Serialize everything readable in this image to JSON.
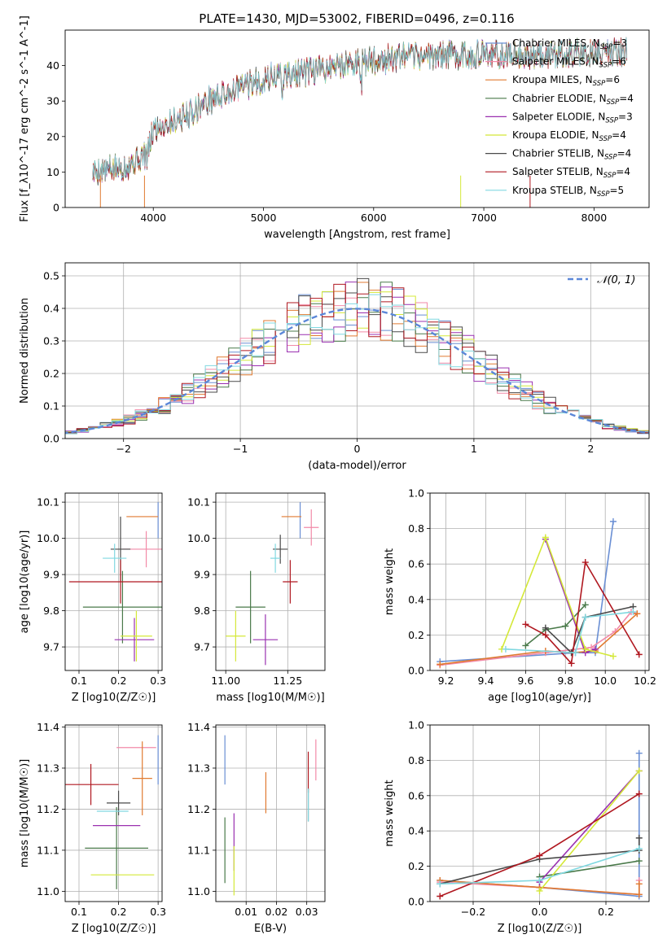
{
  "title": "PLATE=1430, MJD=53002, FIBERID=0496, z=0.116",
  "models": [
    {
      "key": "chab_miles",
      "color": "#6a8fd4",
      "label": "Chabrier MILES, N",
      "n": "=3"
    },
    {
      "key": "salp_miles",
      "color": "#f28aa8",
      "label": "Salpeter MILES, N",
      "n": "=6"
    },
    {
      "key": "krou_miles",
      "color": "#e07a30",
      "label": "Kroupa MILES, N",
      "n": "=6"
    },
    {
      "key": "chab_elodie",
      "color": "#4a7a4a",
      "label": "Chabrier ELODIE, N",
      "n": "=4"
    },
    {
      "key": "salp_elodie",
      "color": "#9a30b0",
      "label": "Salpeter ELODIE, N",
      "n": "=3"
    },
    {
      "key": "krou_elodie",
      "color": "#d4e838",
      "label": "Kroupa ELODIE, N",
      "n": "=4"
    },
    {
      "key": "chab_stelib",
      "color": "#4a4a4a",
      "label": "Chabrier STELIB, N",
      "n": "=4"
    },
    {
      "key": "salp_stelib",
      "color": "#b01820",
      "label": "Salpeter STELIB, N",
      "n": "=4"
    },
    {
      "key": "krou_stelib",
      "color": "#80d8e0",
      "label": "Kroupa STELIB, N",
      "n": "=5"
    }
  ],
  "legend_sub": "SSP",
  "chart_data": [
    {
      "id": "spectrum",
      "type": "line",
      "xlabel": "wavelength [Angstrom, rest frame]",
      "ylabel": "Flux [f_λ10^-17 erg cm^-2 s^-1 A^-1]",
      "xlim": [
        3200,
        8500
      ],
      "ylim": [
        0,
        50
      ],
      "xticks": [
        "4000",
        "5000",
        "6000",
        "7000",
        "8000"
      ],
      "yticks": [
        "0",
        "10",
        "20",
        "30",
        "40"
      ],
      "grid": false,
      "continuum": [
        [
          3450,
          10
        ],
        [
          3700,
          11
        ],
        [
          3950,
          15
        ],
        [
          4000,
          22
        ],
        [
          4300,
          26
        ],
        [
          4500,
          30
        ],
        [
          4800,
          34
        ],
        [
          5100,
          37
        ],
        [
          5400,
          38
        ],
        [
          5800,
          41
        ],
        [
          6200,
          42
        ],
        [
          6600,
          43
        ],
        [
          7000,
          43
        ],
        [
          7400,
          43
        ],
        [
          7800,
          43.5
        ],
        [
          8300,
          44
        ]
      ]
    },
    {
      "id": "residuals",
      "type": "line",
      "xlabel": "(data-model)/error",
      "ylabel": "Normed distribution",
      "xlim": [
        -2.5,
        2.5
      ],
      "ylim": [
        0,
        0.54
      ],
      "xticks": [
        "-2",
        "-1",
        "0",
        "1",
        "2"
      ],
      "yticks": [
        "0.0",
        "0.1",
        "0.2",
        "0.3",
        "0.4",
        "0.5"
      ],
      "grid": true,
      "legend": "𝒩(0, 1)",
      "gaussian": {
        "mu": 0,
        "sigma": 1
      }
    },
    {
      "id": "age_vs_Z",
      "type": "scatter",
      "xlabel": "Z [log10(Z/Z☉)]",
      "ylabel": "age  [log10(age/yr)]",
      "xlim": [
        0.065,
        0.31
      ],
      "ylim": [
        9.635,
        10.125
      ],
      "xticks": [
        "0.1",
        "0.2",
        "0.3"
      ],
      "yticks": [
        "9.7",
        "9.8",
        "9.9",
        "10.0",
        "10.1"
      ],
      "grid": true,
      "points": [
        {
          "x": 0.3,
          "y": 10.05,
          "xe": 0.0,
          "ye": 0.05
        },
        {
          "x": 0.27,
          "y": 9.97,
          "xe": 0.06,
          "ye": 0.05
        },
        {
          "x": 0.26,
          "y": 10.06,
          "xe": 0.04,
          "ye": 0.0
        },
        {
          "x": 0.21,
          "y": 9.81,
          "xe": 0.1,
          "ye": 0.1
        },
        {
          "x": 0.24,
          "y": 9.72,
          "xe": 0.05,
          "ye": 0.06
        },
        {
          "x": 0.245,
          "y": 9.73,
          "xe": 0.04,
          "ye": 0.07
        },
        {
          "x": 0.205,
          "y": 9.97,
          "xe": 0.025,
          "ye": 0.09
        },
        {
          "x": 0.205,
          "y": 9.88,
          "xe": 0.13,
          "ye": 0.06
        },
        {
          "x": 0.19,
          "y": 9.945,
          "xe": 0.03,
          "ye": 0.04
        }
      ]
    },
    {
      "id": "age_vs_mass",
      "type": "scatter",
      "xlabel": "mass [log10(M/M☉)]",
      "ylabel": "",
      "xlim": [
        10.96,
        11.4
      ],
      "ylim": [
        9.635,
        10.125
      ],
      "xticks": [
        "11.00",
        "11.25"
      ],
      "yticks": [
        "9.7",
        "9.8",
        "9.9",
        "10.0",
        "10.1"
      ],
      "grid": true,
      "points": [
        {
          "x": 11.3,
          "y": 10.05,
          "xe": 0.0,
          "ye": 0.05
        },
        {
          "x": 11.345,
          "y": 10.03,
          "xe": 0.03,
          "ye": 0.05
        },
        {
          "x": 11.265,
          "y": 10.06,
          "xe": 0.04,
          "ye": 0.0
        },
        {
          "x": 11.1,
          "y": 9.81,
          "xe": 0.06,
          "ye": 0.1
        },
        {
          "x": 11.16,
          "y": 9.72,
          "xe": 0.05,
          "ye": 0.07
        },
        {
          "x": 11.04,
          "y": 9.73,
          "xe": 0.04,
          "ye": 0.07
        },
        {
          "x": 11.22,
          "y": 9.97,
          "xe": 0.03,
          "ye": 0.04
        },
        {
          "x": 11.26,
          "y": 9.88,
          "xe": 0.03,
          "ye": 0.06
        },
        {
          "x": 11.2,
          "y": 9.945,
          "xe": 0.02,
          "ye": 0.04
        }
      ]
    },
    {
      "id": "weight_vs_age",
      "type": "line",
      "xlabel": "age  [log10(age/yr)]",
      "ylabel": "mass weight",
      "xlim": [
        9.12,
        10.22
      ],
      "ylim": [
        0,
        1
      ],
      "xticks": [
        "9.2",
        "9.4",
        "9.6",
        "9.8",
        "10.0",
        "10.2"
      ],
      "yticks": [
        "0.0",
        "0.2",
        "0.4",
        "0.6",
        "0.8",
        "1.0"
      ],
      "grid": true,
      "series": [
        {
          "points": [
            [
              9.17,
              0.05
            ],
            [
              9.85,
              0.1
            ],
            [
              9.95,
              0.1
            ],
            [
              10.04,
              0.84
            ]
          ]
        },
        {
          "points": [
            [
              9.17,
              0.03
            ],
            [
              9.7,
              0.1
            ],
            [
              9.93,
              0.13
            ],
            [
              10.05,
              0.22
            ],
            [
              10.13,
              0.33
            ],
            [
              10.16,
              0.32
            ]
          ]
        },
        {
          "points": [
            [
              9.17,
              0.035
            ],
            [
              9.7,
              0.11
            ],
            [
              9.83,
              0.1
            ],
            [
              9.95,
              0.11
            ],
            [
              10.16,
              0.32
            ]
          ]
        },
        {
          "points": [
            [
              9.6,
              0.14
            ],
            [
              9.7,
              0.23
            ],
            [
              9.8,
              0.25
            ],
            [
              9.9,
              0.37
            ]
          ]
        },
        {
          "points": [
            [
              9.7,
              0.74
            ],
            [
              9.9,
              0.1
            ],
            [
              9.95,
              0.12
            ]
          ]
        },
        {
          "points": [
            [
              9.48,
              0.12
            ],
            [
              9.7,
              0.75
            ],
            [
              9.9,
              0.12
            ],
            [
              10.04,
              0.08
            ]
          ]
        },
        {
          "points": [
            [
              9.7,
              0.24
            ],
            [
              9.83,
              0.1
            ],
            [
              9.9,
              0.3
            ],
            [
              10.14,
              0.36
            ]
          ]
        },
        {
          "points": [
            [
              9.6,
              0.26
            ],
            [
              9.7,
              0.2
            ],
            [
              9.83,
              0.04
            ],
            [
              9.9,
              0.61
            ],
            [
              10.17,
              0.09
            ]
          ]
        },
        {
          "points": [
            [
              9.5,
              0.12
            ],
            [
              9.85,
              0.1
            ],
            [
              9.9,
              0.3
            ],
            [
              10.14,
              0.33
            ]
          ]
        }
      ]
    },
    {
      "id": "mass_vs_Z",
      "type": "scatter",
      "xlabel": "Z [log10(Z/Z☉)]",
      "ylabel": "mass [log10(M/M☉)]",
      "xlim": [
        0.065,
        0.31
      ],
      "ylim": [
        10.975,
        11.405
      ],
      "xticks": [
        "0.1",
        "0.2",
        "0.3"
      ],
      "yticks": [
        "11.0",
        "11.1",
        "11.2",
        "11.3",
        "11.4"
      ],
      "grid": true,
      "points": [
        {
          "x": 0.3,
          "y": 11.32,
          "xe": 0.0,
          "ye": 0.06
        },
        {
          "x": 0.245,
          "y": 11.35,
          "xe": 0.05,
          "ye": 0.0
        },
        {
          "x": 0.26,
          "y": 11.275,
          "xe": 0.025,
          "ye": 0.09
        },
        {
          "x": 0.195,
          "y": 11.105,
          "xe": 0.08,
          "ye": 0.1
        },
        {
          "x": 0.195,
          "y": 11.16,
          "xe": 0.06,
          "ye": 0.0
        },
        {
          "x": 0.21,
          "y": 11.04,
          "xe": 0.08,
          "ye": 0.0
        },
        {
          "x": 0.2,
          "y": 11.215,
          "xe": 0.03,
          "ye": 0.03
        },
        {
          "x": 0.13,
          "y": 11.26,
          "xe": 0.07,
          "ye": 0.05
        },
        {
          "x": 0.185,
          "y": 11.195,
          "xe": 0.04,
          "ye": 0.0
        }
      ]
    },
    {
      "id": "mass_vs_ebv",
      "type": "scatter",
      "xlabel": "E(B-V)",
      "ylabel": "",
      "xlim": [
        0.0,
        0.036
      ],
      "ylim": [
        10.975,
        11.405
      ],
      "xticks": [
        "0.01",
        "0.02",
        "0.03"
      ],
      "yticks": [
        "11.0",
        "11.1",
        "11.2",
        "11.3",
        "11.4"
      ],
      "grid": true,
      "points": [
        {
          "x": 0.003,
          "y": 11.32,
          "xe": 0.0,
          "ye": 0.06
        },
        {
          "x": 0.033,
          "y": 11.32,
          "xe": 0.0,
          "ye": 0.05
        },
        {
          "x": 0.0165,
          "y": 11.24,
          "xe": 0.0,
          "ye": 0.05
        },
        {
          "x": 0.003,
          "y": 11.1,
          "xe": 0.0,
          "ye": 0.08
        },
        {
          "x": 0.006,
          "y": 11.12,
          "xe": 0.0,
          "ye": 0.07
        },
        {
          "x": 0.006,
          "y": 11.05,
          "xe": 0.0,
          "ye": 0.06
        },
        {
          "x": 0.0305,
          "y": 11.21,
          "xe": 0.0,
          "ye": 0.04
        },
        {
          "x": 0.0305,
          "y": 11.29,
          "xe": 0.0,
          "ye": 0.05
        },
        {
          "x": 0.0305,
          "y": 11.21,
          "xe": 0.0,
          "ye": 0.04
        }
      ]
    },
    {
      "id": "weight_vs_Z",
      "type": "line",
      "xlabel": "Z [log10(Z/Z☉)]",
      "ylabel": "mass weight",
      "xlim": [
        -0.33,
        0.33
      ],
      "ylim": [
        0,
        1
      ],
      "xticks": [
        "-0.2",
        "0.0",
        "0.2"
      ],
      "yticks": [
        "0.0",
        "0.2",
        "0.4",
        "0.6",
        "0.8",
        "1.0"
      ],
      "grid": true,
      "series": [
        {
          "points": [
            [
              -0.3,
              0.12
            ],
            [
              0.0,
              0.08
            ],
            [
              0.3,
              0.03
            ],
            [
              0.3,
              0.84
            ]
          ]
        },
        {
          "points": [
            [
              -0.3,
              0.11
            ],
            [
              0.0,
              0.08
            ],
            [
              0.3,
              0.04
            ],
            [
              0.3,
              0.12
            ]
          ]
        },
        {
          "points": [
            [
              -0.3,
              0.12
            ],
            [
              0.0,
              0.08
            ],
            [
              0.3,
              0.04
            ],
            [
              0.3,
              0.1
            ]
          ]
        },
        {
          "points": [
            [
              0.0,
              0.14
            ],
            [
              0.3,
              0.23
            ]
          ]
        },
        {
          "points": [
            [
              0.0,
              0.11
            ],
            [
              0.3,
              0.74
            ]
          ]
        },
        {
          "points": [
            [
              0.0,
              0.06
            ],
            [
              0.3,
              0.74
            ]
          ]
        },
        {
          "points": [
            [
              -0.3,
              0.1
            ],
            [
              0.0,
              0.24
            ],
            [
              0.3,
              0.29
            ],
            [
              0.3,
              0.36
            ]
          ]
        },
        {
          "points": [
            [
              -0.3,
              0.03
            ],
            [
              0.0,
              0.26
            ],
            [
              0.3,
              0.61
            ]
          ]
        },
        {
          "points": [
            [
              -0.3,
              0.1
            ],
            [
              0.0,
              0.12
            ],
            [
              0.3,
              0.3
            ]
          ]
        }
      ]
    }
  ]
}
